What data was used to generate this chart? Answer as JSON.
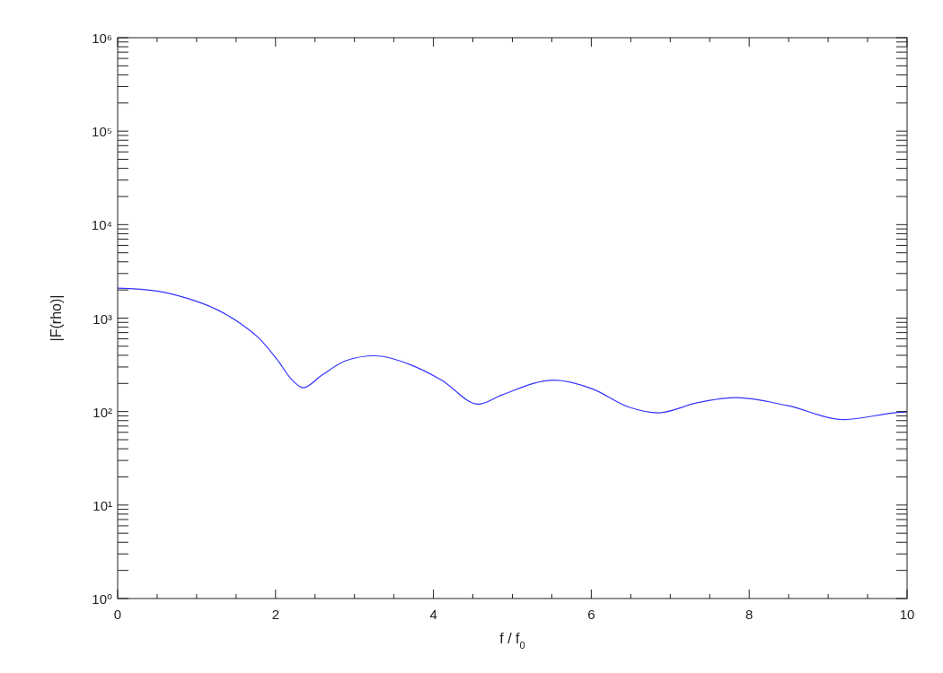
{
  "chart_data": {
    "type": "line",
    "xlabel": "f / f$_{0}$",
    "ylabel": "|F(rho)|",
    "log": "y",
    "line_style": "solid",
    "xlim": [
      0,
      10
    ],
    "ylim": [
      1,
      1000000
    ],
    "xticks": [
      0,
      {
        "value": 0.5,
        "label": null
      },
      {
        "value": 1,
        "label": null
      },
      {
        "value": 1.5,
        "label": null
      },
      2,
      {
        "value": 2.5,
        "label": null
      },
      {
        "value": 3,
        "label": null
      },
      {
        "value": 3.5,
        "label": null
      },
      4,
      {
        "value": 4.5,
        "label": null
      },
      {
        "value": 5,
        "label": null
      },
      {
        "value": 5.5,
        "label": null
      },
      6,
      {
        "value": 6.5,
        "label": null
      },
      {
        "value": 7,
        "label": null
      },
      {
        "value": 7.5,
        "label": null
      },
      8,
      {
        "value": 8.5,
        "label": null
      },
      {
        "value": 9,
        "label": null
      },
      {
        "value": 9.5,
        "label": null
      },
      10
    ],
    "yticks": [
      {
        "value": 1,
        "label": "10⁰"
      },
      {
        "value": 2,
        "label": null
      },
      {
        "value": 3,
        "label": null
      },
      {
        "value": 4,
        "label": null
      },
      {
        "value": 5,
        "label": null
      },
      {
        "value": 6,
        "label": null
      },
      {
        "value": 7,
        "label": null
      },
      {
        "value": 8,
        "label": null
      },
      {
        "value": 9,
        "label": null
      },
      {
        "value": 10,
        "label": "10¹"
      },
      {
        "value": 20,
        "label": null
      },
      {
        "value": 30,
        "label": null
      },
      {
        "value": 40,
        "label": null
      },
      {
        "value": 50,
        "label": null
      },
      {
        "value": 60,
        "label": null
      },
      {
        "value": 70,
        "label": null
      },
      {
        "value": 80,
        "label": null
      },
      {
        "value": 90,
        "label": null
      },
      {
        "value": 100,
        "label": "10²"
      },
      {
        "value": 200,
        "label": null
      },
      {
        "value": 300,
        "label": null
      },
      {
        "value": 400,
        "label": null
      },
      {
        "value": 500,
        "label": null
      },
      {
        "value": 600,
        "label": null
      },
      {
        "value": 700,
        "label": null
      },
      {
        "value": 800,
        "label": null
      },
      {
        "value": 900,
        "label": null
      },
      {
        "value": 1000,
        "label": "10³"
      },
      {
        "value": 2000,
        "label": null
      },
      {
        "value": 3000,
        "label": null
      },
      {
        "value": 4000,
        "label": null
      },
      {
        "value": 5000,
        "label": null
      },
      {
        "value": 6000,
        "label": null
      },
      {
        "value": 7000,
        "label": null
      },
      {
        "value": 8000,
        "label": null
      },
      {
        "value": 9000,
        "label": null
      },
      {
        "value": 10000,
        "label": "10⁴"
      },
      {
        "value": 20000,
        "label": null
      },
      {
        "value": 30000,
        "label": null
      },
      {
        "value": 40000,
        "label": null
      },
      {
        "value": 50000,
        "label": null
      },
      {
        "value": 60000,
        "label": null
      },
      {
        "value": 70000,
        "label": null
      },
      {
        "value": 80000,
        "label": null
      },
      {
        "value": 90000,
        "label": null
      },
      {
        "value": 100000,
        "label": "10⁵"
      },
      {
        "value": 200000,
        "label": null
      },
      {
        "value": 300000,
        "label": null
      },
      {
        "value": 400000,
        "label": null
      },
      {
        "value": 500000,
        "label": null
      },
      {
        "value": 600000,
        "label": null
      },
      {
        "value": 700000,
        "label": null
      },
      {
        "value": 800000,
        "label": null
      },
      {
        "value": 900000,
        "label": null
      },
      {
        "value": 1000000,
        "label": "10⁶"
      }
    ],
    "series": [
      {
        "color": "#3333ff",
        "x": [
          0,
          0.5,
          0.88,
          1.26,
          1.56,
          1.79,
          2.02,
          2.21,
          2.35,
          2.58,
          2.89,
          3.25,
          3.72,
          4.1,
          4.57,
          4.86,
          5.53,
          6.02,
          6.47,
          6.85,
          7.35,
          7.84,
          8.48,
          9.2,
          9.89,
          10
        ],
        "values": [
          2090,
          1950,
          1630,
          1230,
          870,
          610,
          360,
          218,
          180,
          243,
          350,
          395,
          314,
          218,
          120,
          150,
          217,
          174,
          112,
          97,
          125,
          141,
          116,
          82,
          98,
          99
        ]
      }
    ]
  }
}
